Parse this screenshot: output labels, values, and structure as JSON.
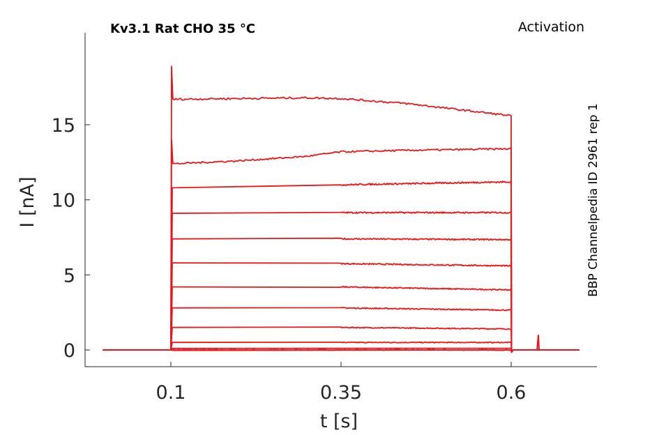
{
  "chart_data": {
    "type": "line",
    "title": "Kv3.1  Rat  CHO  35 °C",
    "subtitle": "Activation",
    "side_label": "BBP Channelpedia ID 2961 rep 1",
    "xlabel": "t [s]",
    "ylabel": "I [nA]",
    "xlim": [
      0.0,
      0.71
    ],
    "ylim": [
      -1.2,
      21.5
    ],
    "x_ticks": [
      0.1,
      0.35,
      0.6
    ],
    "x_tick_labels": [
      "0.1",
      "0.35",
      "0.6"
    ],
    "y_ticks": [
      0,
      5,
      10,
      15
    ],
    "y_tick_labels": [
      "0",
      "5",
      "10",
      "15"
    ],
    "grid": false,
    "line_color": "#e8171a",
    "pulse": {
      "start": 0.1,
      "end": 0.6
    },
    "artifact": {
      "x": 0.64,
      "y": 1.0
    },
    "series": [
      {
        "values": [
          [
            0.0,
            0.0
          ],
          [
            0.1,
            0.0
          ],
          [
            0.6,
            0.0
          ],
          [
            0.7,
            0.0
          ]
        ]
      },
      {
        "values": [
          [
            0.0,
            0.0
          ],
          [
            0.1,
            0.0
          ],
          [
            0.102,
            0.1
          ],
          [
            0.6,
            0.1
          ],
          [
            0.7,
            0.0
          ]
        ]
      },
      {
        "values": [
          [
            0.0,
            0.0
          ],
          [
            0.1,
            0.0
          ],
          [
            0.102,
            0.5
          ],
          [
            0.35,
            0.5
          ],
          [
            0.6,
            0.5
          ],
          [
            0.7,
            0.0
          ]
        ]
      },
      {
        "values": [
          [
            0.0,
            0.0
          ],
          [
            0.1,
            0.0
          ],
          [
            0.102,
            1.5
          ],
          [
            0.35,
            1.5
          ],
          [
            0.6,
            1.4
          ],
          [
            0.7,
            0.0
          ]
        ]
      },
      {
        "values": [
          [
            0.0,
            0.0
          ],
          [
            0.1,
            0.0
          ],
          [
            0.102,
            2.8
          ],
          [
            0.35,
            2.8
          ],
          [
            0.6,
            2.65
          ],
          [
            0.7,
            0.0
          ]
        ]
      },
      {
        "values": [
          [
            0.0,
            0.0
          ],
          [
            0.1,
            0.0
          ],
          [
            0.102,
            4.2
          ],
          [
            0.35,
            4.2
          ],
          [
            0.6,
            4.0
          ],
          [
            0.7,
            0.0
          ]
        ]
      },
      {
        "values": [
          [
            0.0,
            0.0
          ],
          [
            0.1,
            0.0
          ],
          [
            0.102,
            5.8
          ],
          [
            0.35,
            5.75
          ],
          [
            0.6,
            5.6
          ],
          [
            0.7,
            0.0
          ]
        ]
      },
      {
        "values": [
          [
            0.0,
            0.0
          ],
          [
            0.1,
            0.0
          ],
          [
            0.102,
            7.4
          ],
          [
            0.35,
            7.4
          ],
          [
            0.6,
            7.35
          ],
          [
            0.7,
            0.0
          ]
        ]
      },
      {
        "values": [
          [
            0.0,
            0.0
          ],
          [
            0.1,
            0.0
          ],
          [
            0.102,
            9.1
          ],
          [
            0.35,
            9.15
          ],
          [
            0.6,
            9.15
          ],
          [
            0.7,
            0.0
          ]
        ]
      },
      {
        "values": [
          [
            0.0,
            0.0
          ],
          [
            0.1,
            0.0
          ],
          [
            0.102,
            10.8
          ],
          [
            0.35,
            11.0
          ],
          [
            0.6,
            11.2
          ],
          [
            0.7,
            0.0
          ]
        ]
      },
      {
        "values": [
          [
            0.0,
            0.0
          ],
          [
            0.1,
            0.0
          ],
          [
            0.101,
            14.0
          ],
          [
            0.103,
            12.4
          ],
          [
            0.2,
            12.6
          ],
          [
            0.3,
            12.9
          ],
          [
            0.35,
            13.2
          ],
          [
            0.45,
            13.3
          ],
          [
            0.6,
            13.4
          ],
          [
            0.7,
            0.0
          ]
        ]
      },
      {
        "values": [
          [
            0.0,
            0.0
          ],
          [
            0.1,
            0.0
          ],
          [
            0.101,
            18.9
          ],
          [
            0.103,
            16.7
          ],
          [
            0.2,
            16.75
          ],
          [
            0.3,
            16.8
          ],
          [
            0.35,
            16.75
          ],
          [
            0.45,
            16.4
          ],
          [
            0.6,
            15.6
          ],
          [
            0.7,
            0.0
          ]
        ]
      }
    ]
  }
}
